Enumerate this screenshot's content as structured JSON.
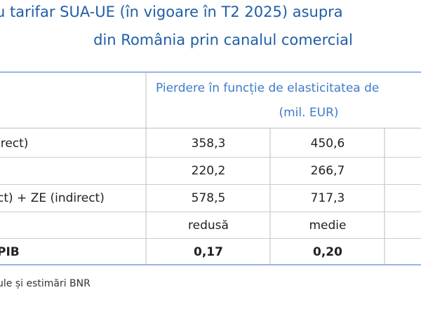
{
  "title": {
    "line1": "u tarifar SUA-UE (în vigoare în T2 2025)  asupra",
    "line2": "din România prin canalul comercial"
  },
  "table": {
    "header": {
      "line1": "Pierdere în funcție de elasticitatea de",
      "line2": "(mil. EUR)"
    },
    "rows": [
      {
        "label": "irect)",
        "cells": [
          "358,3",
          "450,6"
        ]
      },
      {
        "cells": [
          "220,2",
          "266,7"
        ]
      },
      {
        "label": "ct) + ZE (indirect)",
        "cells": [
          "578,5",
          "717,3"
        ]
      },
      {
        "cells": [
          "redusă",
          "medie"
        ]
      },
      {
        "label": "PIB",
        "cells": [
          "0,17",
          "0,20"
        ],
        "bold": true
      }
    ]
  },
  "footer": "ule și estimări BNR"
}
